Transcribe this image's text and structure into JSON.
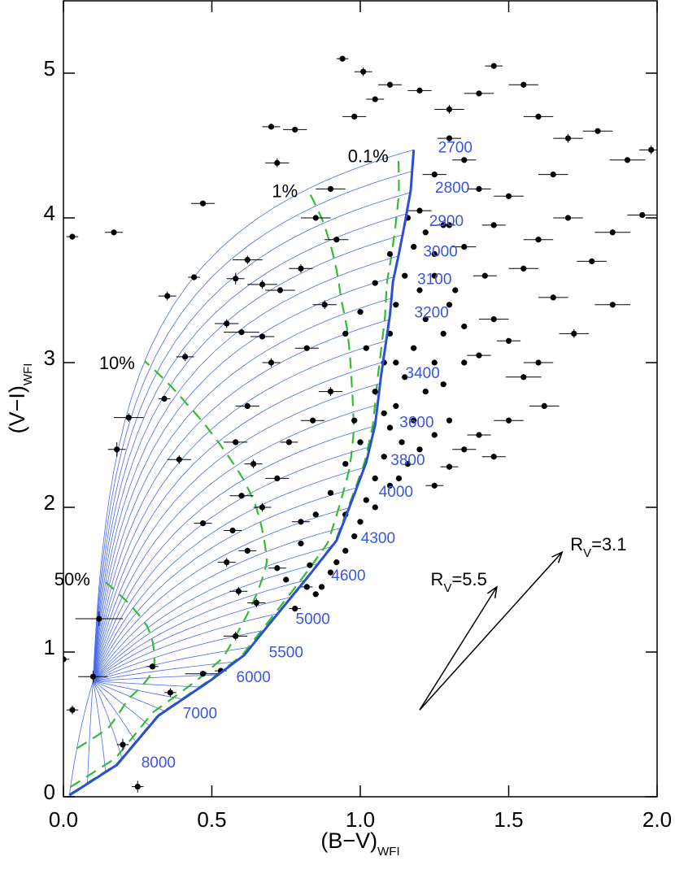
{
  "chart_data": {
    "type": "scatter",
    "xlabel": {
      "base": "(B−V)",
      "sub": "WFI"
    },
    "ylabel": {
      "base": "(V−I)",
      "sub": "WFI"
    },
    "xlim": [
      0,
      2
    ],
    "ylim": [
      0,
      5.5
    ],
    "xticks": [
      {
        "value": 0,
        "label": "0.0"
      },
      {
        "value": 0.5,
        "label": "0.5"
      },
      {
        "value": 1,
        "label": "1.0"
      },
      {
        "value": 1.5,
        "label": "1.5"
      },
      {
        "value": 2,
        "label": "2.0"
      }
    ],
    "yticks": [
      0,
      1,
      2,
      3,
      4,
      5
    ],
    "series": [
      {
        "color": "#000000",
        "x": [
          0.03,
          0.17,
          0.35,
          0.44,
          0.41,
          0.34,
          0.22,
          0.18,
          0.39,
          0.47,
          0.12,
          0.1,
          0.0,
          0.03,
          0.2,
          0.25,
          0.3,
          0.36,
          0.47,
          0.53,
          0.58,
          0.47,
          0.62,
          0.58,
          0.67,
          0.73,
          0.55,
          0.6,
          0.67,
          0.7,
          0.62,
          0.58,
          0.64,
          0.72,
          0.6,
          0.67,
          0.57,
          0.62,
          0.55,
          0.59,
          0.65,
          0.72,
          0.78,
          0.82,
          0.8,
          0.76,
          0.84,
          0.9,
          0.82,
          0.88,
          0.8,
          0.92,
          0.85,
          0.9,
          0.72,
          0.78,
          0.7,
          0.94,
          1.01,
          1.1,
          1.05,
          0.98,
          1.2,
          1.3,
          1.4,
          1.45,
          1.55,
          1.6,
          1.7,
          1.8,
          1.9,
          1.98,
          1.95,
          1.85,
          1.78,
          1.85,
          1.72,
          1.6,
          1.55,
          1.62,
          1.5,
          1.4,
          1.35,
          1.45,
          1.3,
          1.25,
          1.65,
          1.5,
          1.7,
          1.6,
          1.55,
          1.65,
          1.45,
          1.5,
          1.4,
          1.35,
          1.3,
          1.25,
          1.4,
          1.45,
          1.35,
          1.42,
          1.28,
          1.2,
          1.08,
          1.1,
          1.12,
          1.15,
          1.18,
          1.2,
          1.22,
          1.18,
          1.15,
          1.12,
          1.1,
          1.14,
          1.18,
          1.22,
          1.25,
          1.28,
          1.3,
          1.25,
          1.22,
          1.2,
          1.16,
          1.08,
          1.05,
          1.1,
          1.05,
          1.0,
          0.98,
          0.95,
          0.92,
          0.9,
          0.87,
          0.85,
          0.95,
          1.02,
          1.13,
          1.25,
          1.3,
          1.28,
          1.35,
          1.32,
          1.35,
          1.12,
          1.05,
          1.08,
          1.0,
          0.98,
          0.95,
          0.9,
          0.85,
          0.8,
          0.83,
          0.75,
          1.16,
          1.1,
          1.05,
          1.0,
          0.95,
          1.02,
          1.25,
          1.3
        ],
        "y": [
          3.87,
          3.9,
          3.46,
          3.59,
          3.04,
          2.75,
          2.62,
          2.4,
          2.33,
          1.89,
          1.23,
          0.83,
          0.95,
          0.6,
          0.36,
          0.07,
          0.9,
          0.72,
          0.85,
          0.87,
          1.11,
          4.1,
          3.71,
          3.58,
          3.54,
          3.5,
          3.27,
          3.21,
          3.18,
          3.0,
          2.7,
          2.45,
          2.3,
          2.2,
          2.08,
          2.0,
          1.84,
          1.7,
          1.62,
          1.42,
          1.34,
          1.58,
          1.3,
          1.45,
          1.9,
          2.45,
          2.6,
          2.8,
          3.1,
          3.4,
          3.65,
          3.85,
          4.0,
          4.2,
          4.38,
          4.61,
          4.63,
          5.1,
          5.01,
          4.92,
          4.82,
          4.7,
          4.88,
          4.75,
          4.86,
          5.05,
          4.92,
          4.7,
          4.55,
          4.6,
          4.4,
          4.47,
          4.02,
          3.9,
          3.7,
          3.4,
          3.2,
          3.0,
          2.9,
          2.7,
          2.6,
          2.5,
          2.4,
          2.35,
          2.28,
          2.15,
          4.3,
          4.15,
          4.0,
          3.85,
          3.65,
          3.45,
          3.3,
          3.15,
          3.05,
          4.4,
          4.55,
          4.3,
          4.2,
          3.95,
          3.8,
          3.6,
          3.95,
          4.05,
          3.0,
          3.2,
          3.4,
          3.6,
          3.8,
          3.5,
          3.3,
          3.1,
          2.9,
          2.7,
          2.55,
          2.45,
          2.6,
          2.8,
          3.0,
          3.2,
          3.4,
          3.6,
          3.9,
          2.4,
          2.3,
          2.35,
          2.2,
          2.15,
          2.0,
          1.9,
          1.8,
          1.7,
          1.62,
          1.55,
          1.45,
          1.4,
          1.95,
          2.05,
          2.2,
          2.5,
          2.6,
          2.85,
          3.0,
          3.5,
          3.25,
          3.0,
          2.8,
          2.65,
          2.45,
          2.6,
          2.3,
          2.1,
          1.95,
          1.75,
          1.6,
          1.5,
          4.0,
          3.75,
          3.55,
          3.35,
          3.2,
          3.1,
          3.75,
          3.95
        ],
        "xerr": [
          0.02,
          0.03,
          0.03,
          0.02,
          0.03,
          0.02,
          0.05,
          0.03,
          0.04,
          0.03,
          0.08,
          0.05,
          0.02,
          0.02,
          0.02,
          0.02,
          0.02,
          0.02,
          0.06,
          0.02,
          0.04,
          0.04,
          0.05,
          0.03,
          0.05,
          0.05,
          0.04,
          0.06,
          0.04,
          0.03,
          0.04,
          0.04,
          0.03,
          0.04,
          0.04,
          0.03,
          0.03,
          0.03,
          0.03,
          0.03,
          0.03,
          0.03,
          0.02,
          0.02,
          0.03,
          0.03,
          0.04,
          0.04,
          0.04,
          0.04,
          0.04,
          0.04,
          0.05,
          0.05,
          0.04,
          0.04,
          0.03,
          0.02,
          0.03,
          0.04,
          0.03,
          0.04,
          0.04,
          0.05,
          0.05,
          0.03,
          0.05,
          0.05,
          0.05,
          0.05,
          0.06,
          0.04,
          0.05,
          0.06,
          0.05,
          0.06,
          0.05,
          0.05,
          0.06,
          0.05,
          0.05,
          0.04,
          0.04,
          0.04,
          0.03,
          0.03,
          0.05,
          0.05,
          0.05,
          0.05,
          0.05,
          0.05,
          0.05,
          0.04,
          0.04,
          0.04,
          0.04,
          0.04,
          0.04,
          0.04,
          0.04,
          0.04,
          0.04,
          0.04,
          0.01,
          0.01,
          0.01,
          0.01,
          0.01,
          0.01,
          0.01,
          0.01,
          0.01,
          0.01,
          0.01,
          0.01,
          0.01,
          0.01,
          0.01,
          0.01,
          0.01,
          0.01,
          0.01,
          0.01,
          0.01,
          0.01,
          0.01,
          0.01,
          0.01,
          0.01,
          0.01,
          0.01,
          0.01,
          0.01,
          0.01,
          0.01,
          0.01,
          0.01,
          0.01,
          0.01,
          0.01,
          0.01,
          0.01,
          0.01,
          0.01,
          0.01,
          0.01,
          0.01,
          0.01,
          0.01,
          0.01,
          0.01,
          0.01,
          0.01,
          0.01,
          0.01,
          0.01,
          0.01,
          0.01,
          0.01,
          0.01,
          0.01,
          0.01,
          0.01
        ],
        "yerr": [
          0.02,
          0.02,
          0.03,
          0.02,
          0.03,
          0.02,
          0.03,
          0.05,
          0.03,
          0.02,
          0.05,
          0.04,
          0.03,
          0.03,
          0.04,
          0.04,
          0.02,
          0.03,
          0.02,
          0.02,
          0.03,
          0.02,
          0.03,
          0.04,
          0.03,
          0.02,
          0.03,
          0.02,
          0.02,
          0.03,
          0.02,
          0.02,
          0.03,
          0.02,
          0.02,
          0.03,
          0.02,
          0.02,
          0.03,
          0.03,
          0.03,
          0.02,
          0.02,
          0.02,
          0.02,
          0.02,
          0.02,
          0.03,
          0.02,
          0.03,
          0.03,
          0.02,
          0.02,
          0.02,
          0.03,
          0.02,
          0.02,
          0.02,
          0.03,
          0.02,
          0.02,
          0.02,
          0.02,
          0.03,
          0.02,
          0.02,
          0.02,
          0.02,
          0.03,
          0.02,
          0.02,
          0.03,
          0.02,
          0.02,
          0.02,
          0.02,
          0.03,
          0.02,
          0.02,
          0.02,
          0.02,
          0.02,
          0.02,
          0.02,
          0.02,
          0.02,
          0.02,
          0.02,
          0.02,
          0.02,
          0.02,
          0.02,
          0.02,
          0.02,
          0.02,
          0.02,
          0.02,
          0.02,
          0.02,
          0.02,
          0.02,
          0.02,
          0.02,
          0.02,
          0.01,
          0.01,
          0.01,
          0.01,
          0.01,
          0.01,
          0.01,
          0.01,
          0.01,
          0.01,
          0.01,
          0.01,
          0.01,
          0.01,
          0.01,
          0.01,
          0.01,
          0.01,
          0.01,
          0.01,
          0.01,
          0.01,
          0.01,
          0.01,
          0.01,
          0.01,
          0.01,
          0.01,
          0.01,
          0.01,
          0.01,
          0.01,
          0.01,
          0.01,
          0.01,
          0.01,
          0.01,
          0.01,
          0.01,
          0.01,
          0.01,
          0.01,
          0.01,
          0.01,
          0.01,
          0.01,
          0.01,
          0.01,
          0.01,
          0.01,
          0.01,
          0.01,
          0.01,
          0.01,
          0.01,
          0.01,
          0.01,
          0.01,
          0.01,
          0.01
        ]
      }
    ],
    "locus": {
      "color": "#2a4fd6",
      "x": [
        0.02,
        0.18,
        0.32,
        0.5,
        0.61,
        0.7,
        0.82,
        0.92,
        0.98,
        1.02,
        1.05,
        1.07,
        1.1,
        1.11,
        1.13,
        1.15,
        1.17,
        1.18
      ],
      "y": [
        0.01,
        0.22,
        0.56,
        0.81,
        0.98,
        1.21,
        1.51,
        1.77,
        2.09,
        2.31,
        2.57,
        2.91,
        3.33,
        3.56,
        3.75,
        3.96,
        4.19,
        4.47
      ],
      "labels": [
        null,
        "8000",
        "7000",
        "6000",
        "5500",
        "5000",
        "4600",
        "4300",
        "4000",
        "3800",
        "3600",
        "3400",
        "3200",
        "3100",
        "3000",
        "2900",
        "2800",
        "2700"
      ]
    },
    "mixing_origin": {
      "x": 0.1,
      "y": 0.8
    },
    "mixing_color": "#4a6af0",
    "contours": {
      "color": "#33bb33",
      "fractions": [
        0.1,
        1,
        10,
        50
      ],
      "labels": [
        "0.1%",
        "1%",
        "10%",
        "50%"
      ]
    },
    "reddening_vectors": [
      {
        "x": [
          1.2,
          1.68
        ],
        "y": [
          0.6,
          1.69
        ],
        "label": {
          "base": "R",
          "sub": "V",
          "tail": "=3.1"
        }
      },
      {
        "x": [
          1.2,
          1.46
        ],
        "y": [
          0.6,
          1.45
        ],
        "label": {
          "base": "R",
          "sub": "V",
          "tail": "=5.5"
        }
      }
    ]
  }
}
